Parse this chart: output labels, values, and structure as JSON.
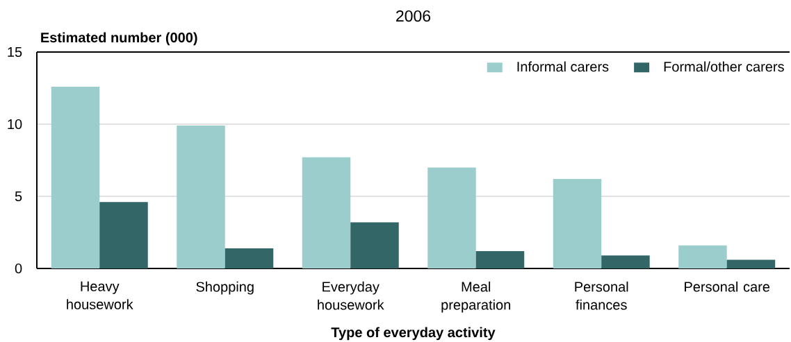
{
  "chart_data": {
    "type": "bar",
    "title": "2006",
    "xlabel": "Type of everyday activity",
    "ylabel": "Estimated number (000)",
    "categories": [
      "Heavy housework",
      "Shopping",
      "Everyday housework",
      "Meal preparation",
      "Personal finances",
      "Personal care"
    ],
    "series": [
      {
        "name": "Informal carers",
        "color": "#9ccdcd",
        "values": [
          12.6,
          9.9,
          7.7,
          7.0,
          6.2,
          1.6
        ]
      },
      {
        "name": "Formal/other carers",
        "color": "#336666",
        "values": [
          4.6,
          1.4,
          3.2,
          1.2,
          0.9,
          0.6
        ]
      }
    ],
    "ylim": [
      0,
      15
    ],
    "yticks": [
      0,
      5,
      10,
      15
    ],
    "grid": "y",
    "legend": "top right"
  }
}
